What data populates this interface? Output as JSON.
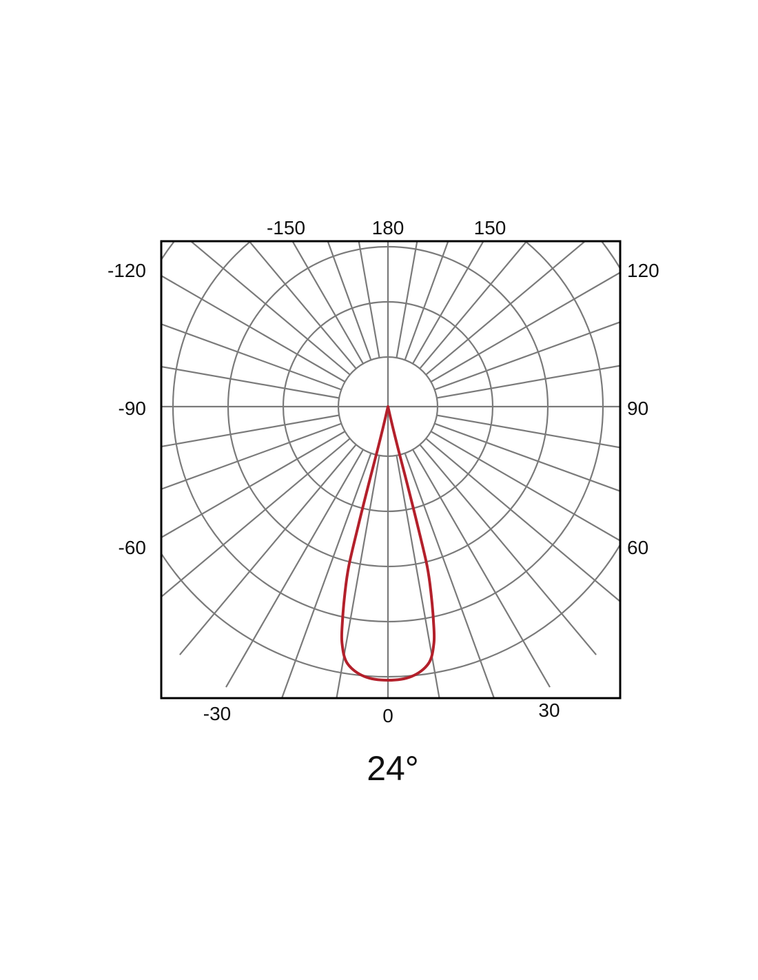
{
  "chart_data": {
    "type": "polar",
    "title": "24°",
    "angle_zero": "bottom",
    "angle_direction": "counter-clockwise-to-right",
    "angle_ticks": [
      {
        "label": "-150"
      },
      {
        "label": "180"
      },
      {
        "label": "150"
      },
      {
        "label": "-120"
      },
      {
        "label": "120"
      },
      {
        "label": "-90"
      },
      {
        "label": "90"
      },
      {
        "label": "-60"
      },
      {
        "label": "60"
      },
      {
        "label": "-30"
      },
      {
        "label": "0"
      },
      {
        "label": "30"
      }
    ],
    "radial_grid_rings": 5,
    "radial_line_step_deg": 10,
    "grid": true,
    "series": [
      {
        "color": "#b3202b",
        "symmetric": true,
        "points": [
          {
            "angle": 0,
            "value": 1.0
          },
          {
            "angle": 5,
            "value": 0.99
          },
          {
            "angle": 9,
            "value": 0.95
          },
          {
            "angle": 11,
            "value": 0.88
          },
          {
            "angle": 12,
            "value": 0.8
          },
          {
            "angle": 13,
            "value": 0.7
          },
          {
            "angle": 13.8,
            "value": 0.6
          },
          {
            "angle": 14,
            "value": 0.45
          },
          {
            "angle": 14,
            "value": 0.3
          },
          {
            "angle": 13.6,
            "value": 0.16
          },
          {
            "angle": 13,
            "value": 0.06
          },
          {
            "angle": 0,
            "value": 0
          }
        ]
      }
    ],
    "colors": {
      "grid": "#7a7a7a",
      "frame": "#000000",
      "curve": "#b3202b"
    }
  }
}
